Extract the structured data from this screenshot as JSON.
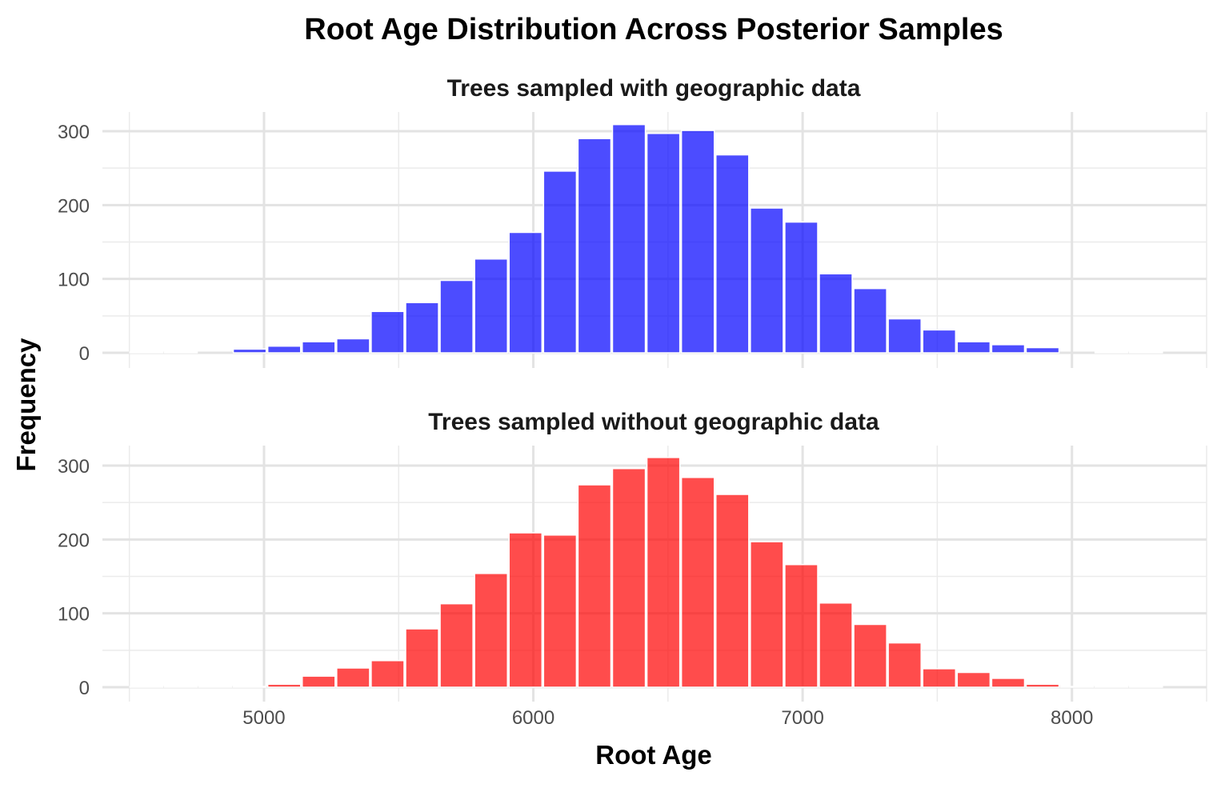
{
  "chart_data": {
    "type": "bar",
    "title": "Root Age Distribution Across Posterior Samples",
    "xlabel": "Root Age",
    "ylabel": "Frequency",
    "xlim": [
      4400,
      8500
    ],
    "ylim": [
      0,
      330
    ],
    "x_ticks": [
      5000,
      6000,
      7000,
      8000
    ],
    "y_ticks": [
      0,
      100,
      200,
      300
    ],
    "grid": true,
    "bin_width": 128,
    "bin_centers": [
      4563,
      4691,
      4819,
      4947,
      5075,
      5203,
      5331,
      5459,
      5587,
      5715,
      5843,
      5971,
      6099,
      6227,
      6355,
      6483,
      6611,
      6739,
      6867,
      6995,
      7123,
      7251,
      7379,
      7507,
      7635,
      7763,
      7891,
      8019,
      8147,
      8275
    ],
    "panels": [
      {
        "label": "Trees sampled with geographic data",
        "color": "#0000ff",
        "values": [
          1,
          1,
          0,
          5,
          9,
          15,
          19,
          56,
          68,
          98,
          127,
          163,
          246,
          290,
          309,
          297,
          301,
          268,
          196,
          177,
          107,
          87,
          46,
          31,
          15,
          11,
          7,
          0,
          1,
          1
        ]
      },
      {
        "label": "Trees sampled without geographic data",
        "color": "#ff0000",
        "values": [
          1,
          1,
          1,
          1,
          4,
          15,
          26,
          36,
          79,
          113,
          154,
          209,
          206,
          274,
          296,
          311,
          284,
          261,
          197,
          166,
          114,
          85,
          60,
          25,
          20,
          12,
          4,
          1,
          1,
          1
        ]
      }
    ]
  }
}
